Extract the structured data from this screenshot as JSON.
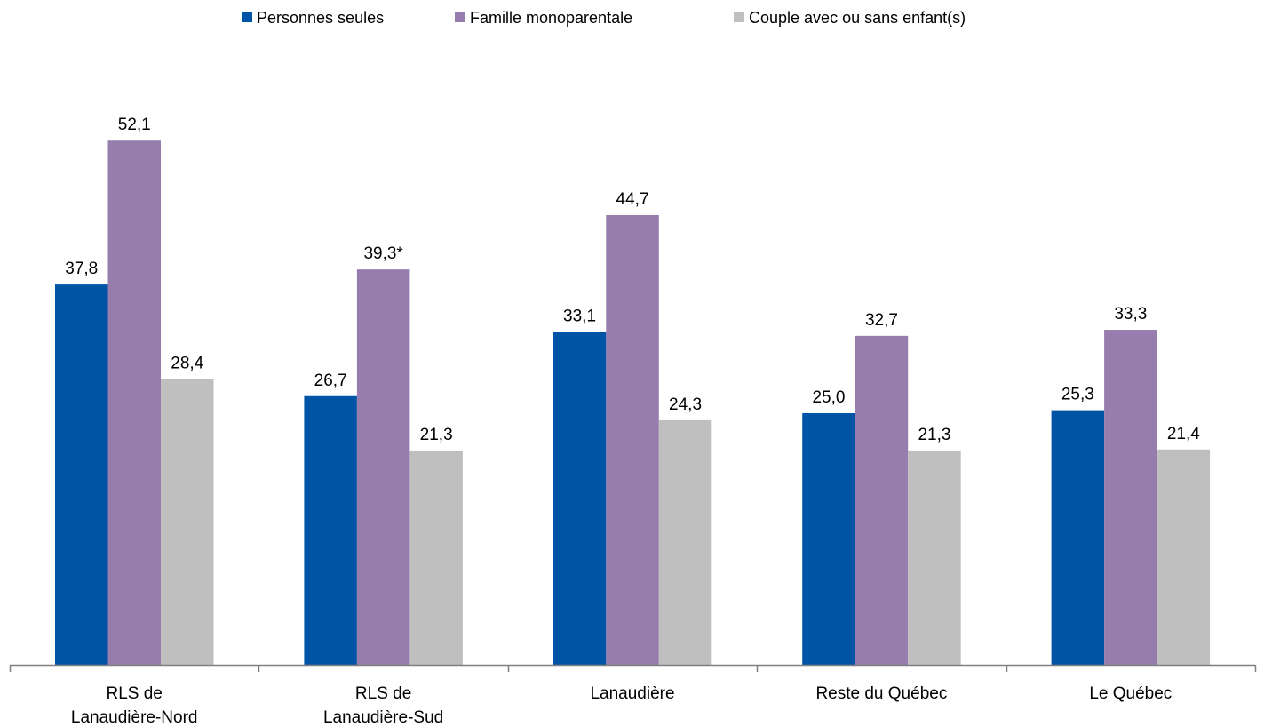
{
  "chart_data": {
    "type": "bar",
    "title": "",
    "xlabel": "",
    "ylabel": "",
    "ylim": [
      0,
      60
    ],
    "grid": false,
    "legend_position": "top-center",
    "categories": [
      [
        "RLS de",
        "Lanaudière-Nord"
      ],
      [
        "RLS de",
        "Lanaudière-Sud"
      ],
      [
        "Lanaudière"
      ],
      [
        "Reste du Québec"
      ],
      [
        "Le Québec"
      ]
    ],
    "series": [
      {
        "name": "Personnes seules",
        "color": "#0054a6",
        "values": [
          37.8,
          26.7,
          33.1,
          25.0,
          25.3
        ],
        "labels": [
          "37,8",
          "26,7",
          "33,1",
          "25,0",
          "25,3"
        ]
      },
      {
        "name": "Famille monoparentale",
        "color": "#967dae",
        "values": [
          52.1,
          39.3,
          44.7,
          32.7,
          33.3
        ],
        "labels": [
          "52,1",
          "39,3*",
          "44,7",
          "32,7",
          "33,3"
        ]
      },
      {
        "name": "Couple avec ou sans enfant(s)",
        "color": "#bfbfbf",
        "values": [
          28.4,
          21.3,
          24.3,
          21.3,
          21.4
        ],
        "labels": [
          "28,4",
          "21,3",
          "24,3",
          "21,3",
          "21,4"
        ]
      }
    ]
  }
}
